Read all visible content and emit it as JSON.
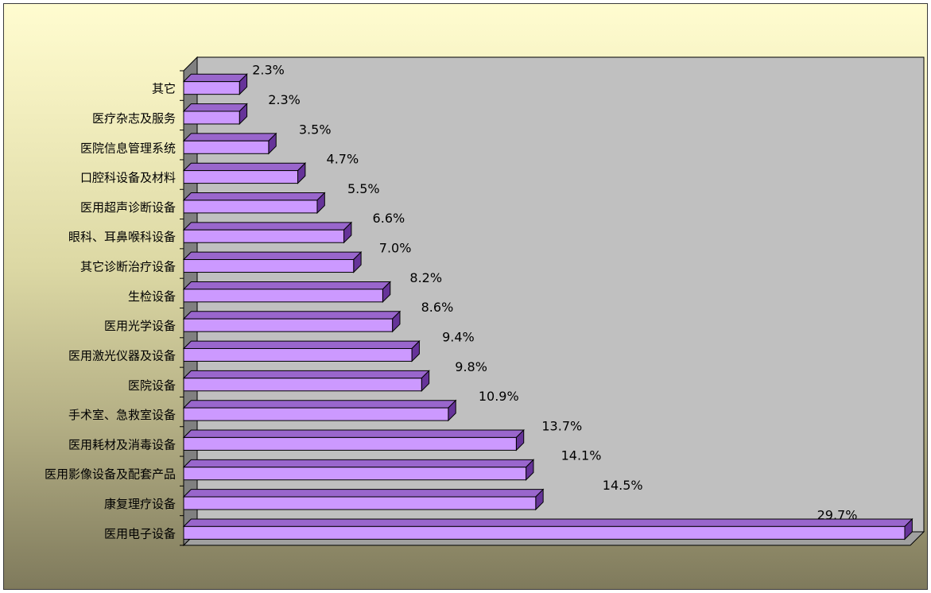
{
  "chart_data": {
    "type": "bar",
    "orientation": "horizontal",
    "style": "3d",
    "categories": [
      "医用电子设备",
      "康复理疗设备",
      "医用影像设备及配套产品",
      "医用耗材及消毒设备",
      "手术室、急救室设备",
      "医院设备",
      "医用激光仪器及设备",
      "医用光学设备",
      "生检设备",
      "其它诊断治疗设备",
      "眼科、耳鼻喉科设备",
      "医用超声诊断设备",
      "口腔科设备及材料",
      "医院信息管理系统",
      "医疗杂志及服务",
      "其它"
    ],
    "values": [
      29.7,
      14.5,
      14.1,
      13.7,
      10.9,
      9.8,
      9.4,
      8.6,
      8.2,
      7.0,
      6.6,
      5.5,
      4.7,
      3.5,
      2.3,
      2.3
    ],
    "value_labels": [
      "29.7%",
      "14.5%",
      "14.1%",
      "13.7%",
      "10.9%",
      "9.8%",
      "9.4%",
      "8.6%",
      "8.2%",
      "7.0%",
      "6.6%",
      "5.5%",
      "4.7%",
      "3.5%",
      "2.3%",
      "2.3%"
    ],
    "xlim": [
      0,
      29.7
    ],
    "title": "",
    "xlabel": "",
    "ylabel": "",
    "grid": false,
    "legend": "none",
    "colors": {
      "bar_front": "#cc99ff",
      "bar_top": "#9966cc",
      "bar_side": "#663399",
      "wall": "#c0c0c0",
      "side_wall": "#808080",
      "floor": "#a0a0a0"
    }
  }
}
